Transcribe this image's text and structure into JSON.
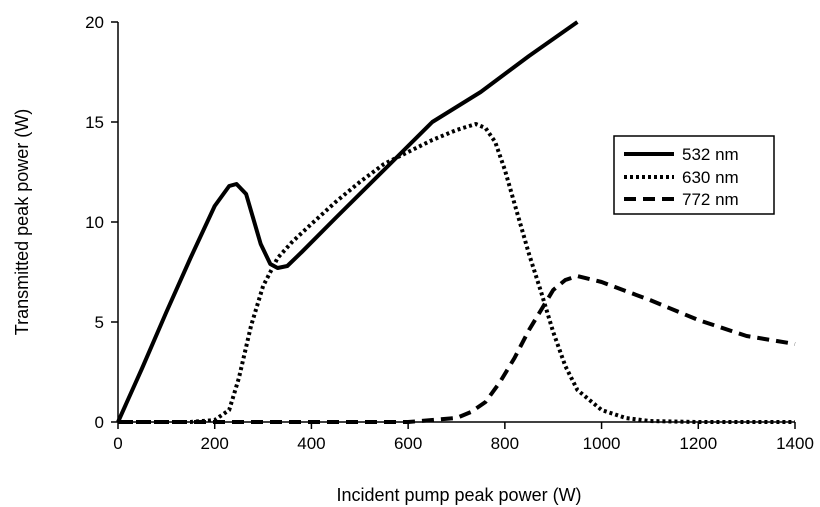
{
  "chart_data": {
    "type": "line",
    "title": "",
    "xlabel": "Incident pump peak power (W)",
    "ylabel": "Transmitted peak power (W)",
    "xlim": [
      0,
      1400
    ],
    "ylim": [
      0,
      20
    ],
    "xticks": [
      0,
      200,
      400,
      600,
      800,
      1000,
      1200,
      1400
    ],
    "yticks": [
      0,
      5,
      10,
      15,
      20
    ],
    "grid": false,
    "legend": "right",
    "series": [
      {
        "name": "532 nm",
        "style": "solid",
        "x": [
          0,
          50,
          100,
          150,
          200,
          230,
          245,
          265,
          295,
          315,
          330,
          350,
          380,
          450,
          550,
          650,
          750,
          850,
          950
        ],
        "y": [
          0,
          2.7,
          5.5,
          8.2,
          10.8,
          11.8,
          11.9,
          11.4,
          8.9,
          7.9,
          7.7,
          7.8,
          8.5,
          10.2,
          12.6,
          15.0,
          16.5,
          18.3,
          20.0
        ]
      },
      {
        "name": "630 nm",
        "style": "dotted",
        "x": [
          0,
          100,
          150,
          200,
          230,
          250,
          275,
          300,
          330,
          360,
          400,
          450,
          500,
          550,
          600,
          650,
          700,
          740,
          760,
          780,
          800,
          825,
          850,
          875,
          900,
          925,
          950,
          1000,
          1050,
          1100,
          1200,
          1300,
          1400
        ],
        "y": [
          0,
          0,
          0,
          0.1,
          0.6,
          2.2,
          4.8,
          6.8,
          8.2,
          9.0,
          9.9,
          11.0,
          12.0,
          12.9,
          13.5,
          14.1,
          14.6,
          14.9,
          14.7,
          14.0,
          12.6,
          10.5,
          8.4,
          6.5,
          4.5,
          2.8,
          1.6,
          0.6,
          0.2,
          0.05,
          0,
          0,
          0
        ]
      },
      {
        "name": "772 nm",
        "style": "dashed",
        "x": [
          0,
          200,
          400,
          600,
          650,
          700,
          730,
          760,
          790,
          820,
          850,
          875,
          900,
          925,
          950,
          1000,
          1100,
          1200,
          1300,
          1400
        ],
        "y": [
          0,
          0,
          0,
          0,
          0.1,
          0.2,
          0.5,
          1.0,
          2.0,
          3.2,
          4.6,
          5.6,
          6.6,
          7.1,
          7.3,
          7.0,
          6.1,
          5.1,
          4.3,
          3.9
        ]
      }
    ]
  }
}
